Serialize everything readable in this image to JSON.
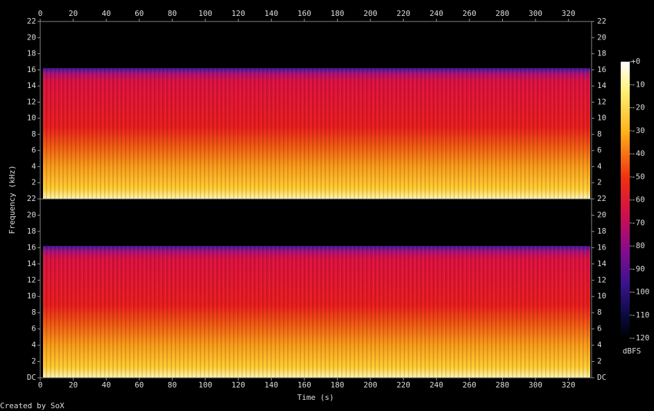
{
  "chart_data": {
    "type": "spectrogram",
    "xlabel": "Time (s)",
    "ylabel": "Frequency (kHz)",
    "colorbar_label": "dBFS",
    "footer": "Created by SoX",
    "xlim": [
      0,
      334
    ],
    "xticks": [
      0,
      20,
      40,
      60,
      80,
      100,
      120,
      140,
      160,
      180,
      200,
      220,
      240,
      260,
      280,
      300,
      320
    ],
    "ylim": [
      0,
      22
    ],
    "channels": [
      {
        "yticks": [
          2,
          4,
          6,
          8,
          10,
          12,
          14,
          16,
          18,
          20,
          22
        ]
      },
      {
        "yticks": [
          {
            "value": 0,
            "label": "DC"
          },
          2,
          4,
          6,
          8,
          10,
          12,
          14,
          16,
          18,
          20,
          22
        ]
      }
    ],
    "zlim": [
      -120,
      0
    ],
    "zticks": [
      {
        "value": 0,
        "label": "+0"
      },
      -10,
      -20,
      -30,
      -40,
      -50,
      -60,
      -70,
      -80,
      -90,
      -100,
      -110,
      -120
    ]
  }
}
